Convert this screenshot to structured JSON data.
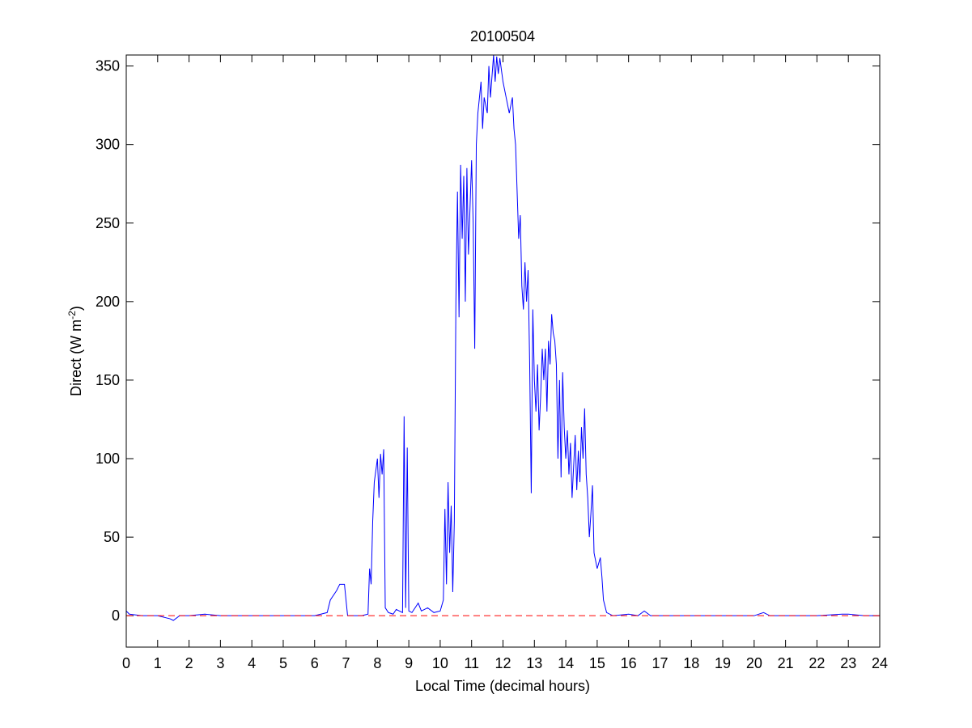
{
  "chart_data": {
    "type": "line",
    "title": "20100504",
    "xlabel": "Local Time (decimal hours)",
    "ylabel": {
      "text": "Direct (W m",
      "superscript": "-2",
      "tail": ")"
    },
    "xlim": [
      0,
      24
    ],
    "xticks": [
      0,
      1,
      2,
      3,
      4,
      5,
      6,
      7,
      8,
      9,
      10,
      11,
      12,
      13,
      14,
      15,
      16,
      17,
      18,
      19,
      20,
      21,
      22,
      23,
      24
    ],
    "ylim": [
      -20,
      357
    ],
    "yticks": [
      0,
      50,
      100,
      150,
      200,
      250,
      300,
      350
    ],
    "grid": false,
    "box": true,
    "reference_lines": [
      {
        "value": 0,
        "color": "#ff0000",
        "dashed": true
      }
    ],
    "series": [
      {
        "color": "#0000ff",
        "x": [
          0,
          0.1,
          0.5,
          1,
          1.4,
          1.5,
          1.7,
          2,
          2.5,
          3,
          6,
          6.2,
          6.4,
          6.5,
          6.7,
          6.8,
          6.95,
          7.05,
          7.5,
          7.7,
          7.75,
          7.8,
          7.85,
          7.9,
          8.0,
          8.05,
          8.1,
          8.15,
          8.2,
          8.25,
          8.35,
          8.5,
          8.6,
          8.8,
          8.85,
          8.9,
          8.95,
          9.0,
          9.1,
          9.3,
          9.4,
          9.6,
          9.8,
          10.0,
          10.1,
          10.15,
          10.2,
          10.25,
          10.3,
          10.35,
          10.4,
          10.45,
          10.5,
          10.55,
          10.6,
          10.65,
          10.7,
          10.75,
          10.8,
          10.85,
          10.9,
          11.0,
          11.05,
          11.1,
          11.15,
          11.2,
          11.3,
          11.35,
          11.4,
          11.5,
          11.55,
          11.6,
          11.7,
          11.75,
          11.8,
          11.85,
          11.9,
          12.0,
          12.1,
          12.2,
          12.3,
          12.35,
          12.4,
          12.5,
          12.55,
          12.6,
          12.65,
          12.7,
          12.75,
          12.8,
          12.85,
          12.9,
          12.95,
          13.0,
          13.05,
          13.1,
          13.15,
          13.2,
          13.25,
          13.3,
          13.35,
          13.4,
          13.45,
          13.5,
          13.55,
          13.6,
          13.65,
          13.7,
          13.75,
          13.8,
          13.85,
          13.9,
          13.95,
          14.0,
          14.05,
          14.1,
          14.15,
          14.2,
          14.3,
          14.35,
          14.4,
          14.45,
          14.5,
          14.55,
          14.6,
          14.65,
          14.7,
          14.75,
          14.8,
          14.85,
          14.9,
          14.95,
          15.0,
          15.1,
          15.15,
          15.2,
          15.3,
          15.5,
          16,
          16.3,
          16.5,
          16.7,
          17,
          20,
          20.3,
          20.5,
          22,
          22.8,
          23,
          23.5,
          24
        ],
        "values": [
          3,
          1,
          0,
          0,
          -2,
          -3,
          0,
          0,
          1,
          0,
          0,
          1,
          2,
          10,
          16,
          20,
          20,
          0,
          0,
          1,
          30,
          20,
          60,
          85,
          100,
          75,
          103,
          90,
          106,
          5,
          2,
          1,
          4,
          2,
          127,
          5,
          107,
          3,
          2,
          8,
          3,
          5,
          2,
          3,
          10,
          68,
          20,
          85,
          40,
          70,
          15,
          60,
          200,
          270,
          190,
          287,
          240,
          280,
          200,
          285,
          230,
          290,
          250,
          170,
          300,
          320,
          340,
          310,
          330,
          320,
          350,
          330,
          357,
          340,
          356,
          345,
          355,
          340,
          330,
          320,
          330,
          310,
          300,
          240,
          255,
          210,
          195,
          225,
          200,
          220,
          160,
          78,
          195,
          150,
          130,
          160,
          118,
          140,
          170,
          150,
          170,
          130,
          175,
          160,
          192,
          180,
          175,
          160,
          100,
          150,
          88,
          155,
          120,
          100,
          118,
          90,
          110,
          75,
          115,
          80,
          105,
          85,
          120,
          100,
          132,
          90,
          75,
          50,
          65,
          83,
          40,
          35,
          30,
          37,
          25,
          10,
          2,
          0,
          1,
          0,
          3,
          0,
          0,
          0,
          2,
          0,
          0,
          1,
          1,
          0,
          0
        ]
      }
    ]
  }
}
